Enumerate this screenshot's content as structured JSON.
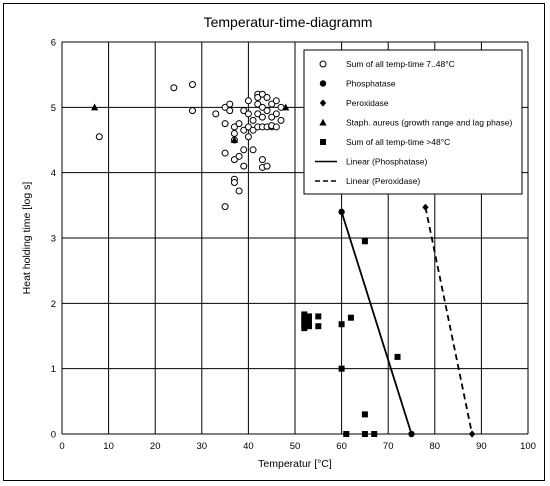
{
  "chart_data": {
    "type": "scatter",
    "title": "Temperatur-time-diagramm",
    "xlabel": "Temperatur [°C]",
    "ylabel": "Heat holding time [log s]",
    "xlim": [
      0,
      100
    ],
    "ylim": [
      0,
      6
    ],
    "xticks": [
      "0",
      "10",
      "20",
      "30",
      "40",
      "50",
      "60",
      "70",
      "80",
      "90",
      "100"
    ],
    "yticks": [
      "0",
      "1",
      "2",
      "3",
      "4",
      "5",
      "6"
    ],
    "grid": true,
    "legend_position": "top-right",
    "series": [
      {
        "name": "Sum of all temp-time 7..48°C",
        "marker": "open-circle",
        "color": "#000000",
        "points": [
          [
            8,
            4.55
          ],
          [
            24,
            5.3
          ],
          [
            28,
            5.35
          ],
          [
            28,
            4.95
          ],
          [
            33,
            4.9
          ],
          [
            35,
            5.0
          ],
          [
            35,
            4.75
          ],
          [
            35,
            4.3
          ],
          [
            35,
            3.48
          ],
          [
            36,
            5.05
          ],
          [
            36,
            4.95
          ],
          [
            37,
            4.7
          ],
          [
            37,
            4.6
          ],
          [
            37,
            4.5
          ],
          [
            37,
            4.2
          ],
          [
            37,
            3.9
          ],
          [
            37,
            3.85
          ],
          [
            38,
            4.75
          ],
          [
            38,
            4.25
          ],
          [
            38,
            3.72
          ],
          [
            39,
            4.95
          ],
          [
            39,
            4.65
          ],
          [
            39,
            4.35
          ],
          [
            39,
            4.1
          ],
          [
            40,
            5.1
          ],
          [
            40,
            4.9
          ],
          [
            40,
            4.7
          ],
          [
            40,
            4.55
          ],
          [
            41,
            4.8
          ],
          [
            41,
            4.65
          ],
          [
            41,
            4.35
          ],
          [
            42,
            5.2
          ],
          [
            42,
            5.15
          ],
          [
            42,
            5.05
          ],
          [
            42,
            4.9
          ],
          [
            42,
            4.7
          ],
          [
            43,
            5.2
          ],
          [
            43,
            5.0
          ],
          [
            43,
            4.85
          ],
          [
            43,
            4.7
          ],
          [
            43,
            4.2
          ],
          [
            43,
            4.08
          ],
          [
            44,
            5.15
          ],
          [
            44,
            4.95
          ],
          [
            44,
            4.7
          ],
          [
            44,
            4.1
          ],
          [
            45,
            5.05
          ],
          [
            45,
            4.85
          ],
          [
            45,
            4.7
          ],
          [
            45,
            4.72
          ],
          [
            46,
            5.1
          ],
          [
            46,
            4.9
          ],
          [
            46,
            4.7
          ],
          [
            47,
            4.8
          ],
          [
            47,
            5.0
          ]
        ]
      },
      {
        "name": "Phosphatase",
        "marker": "filled-circle",
        "color": "#000000",
        "points": [
          [
            60,
            3.4
          ],
          [
            75,
            0
          ]
        ]
      },
      {
        "name": "Peroxidase",
        "marker": "diamond",
        "color": "#000000",
        "points": [
          [
            78,
            3.47
          ],
          [
            88,
            0
          ]
        ]
      },
      {
        "name": "Staph. aureus (growth range and lag phase)",
        "marker": "triangle",
        "color": "#000000",
        "points": [
          [
            7,
            5.0
          ],
          [
            37,
            4.5
          ],
          [
            48,
            5.0
          ]
        ]
      },
      {
        "name": "Sum of all temp-time >48°C",
        "marker": "square",
        "color": "#000000",
        "points": [
          [
            52,
            1.83
          ],
          [
            52,
            1.78
          ],
          [
            52,
            1.73
          ],
          [
            52,
            1.68
          ],
          [
            52,
            1.62
          ],
          [
            53,
            1.8
          ],
          [
            53,
            1.75
          ],
          [
            53,
            1.7
          ],
          [
            53,
            1.65
          ],
          [
            55,
            1.8
          ],
          [
            55,
            1.65
          ],
          [
            60,
            1.68
          ],
          [
            60,
            1.0
          ],
          [
            61,
            0
          ],
          [
            62,
            1.78
          ],
          [
            65,
            2.95
          ],
          [
            65,
            0.3
          ],
          [
            65,
            0
          ],
          [
            67,
            0
          ],
          [
            72,
            1.18
          ]
        ]
      },
      {
        "name": "Linear (Phosphatase)",
        "line": "solid",
        "color": "#000000",
        "points": [
          [
            60,
            3.4
          ],
          [
            75,
            0
          ]
        ]
      },
      {
        "name": "Linear (Peroxidase)",
        "line": "dashed",
        "color": "#000000",
        "points": [
          [
            78,
            3.47
          ],
          [
            88,
            0
          ]
        ]
      }
    ]
  }
}
